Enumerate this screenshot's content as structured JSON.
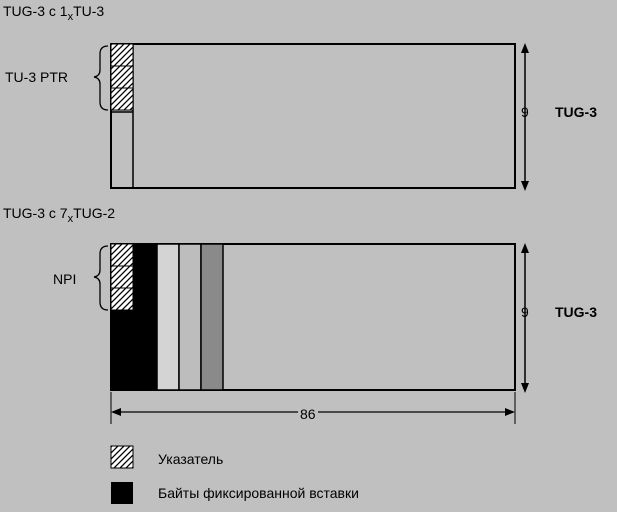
{
  "top": {
    "title_pre": "TUG-3 c 1",
    "title_sub": "x",
    "title_post": "TU-3",
    "brace_label": "TU-3 PTR",
    "rows_label": "9",
    "side_label": "TUG-3"
  },
  "bottom": {
    "title_pre": "TUG-3 c 7",
    "title_sub": "x",
    "title_post": "TUG-2",
    "brace_label": "NPI",
    "rows_label": "9",
    "side_label": "TUG-3",
    "cols_label": "86"
  },
  "legend": [
    {
      "label": "Указатель",
      "swatch": "hatched"
    },
    {
      "label": "Байты фиксированной вставки",
      "swatch": "black"
    }
  ],
  "colors": {
    "background": "#c0c0c0",
    "fixed_stuff": "#000000",
    "light_column": "#d4d4d4",
    "mid_column": "#bdbdbd",
    "dark_column": "#8a8a8a"
  }
}
